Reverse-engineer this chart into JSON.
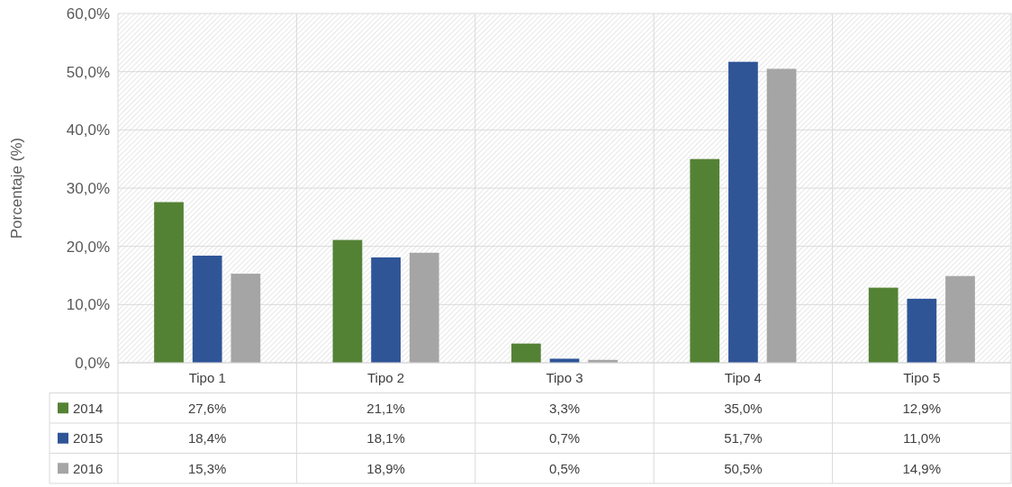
{
  "chart_data": {
    "type": "bar",
    "ylabel": "Porcentaje (%)",
    "categories": [
      "Tipo 1",
      "Tipo 2",
      "Tipo 3",
      "Tipo 4",
      "Tipo 5"
    ],
    "series": [
      {
        "name": "2014",
        "color": "#548235",
        "values": [
          27.6,
          21.1,
          3.3,
          35.0,
          12.9
        ],
        "value_labels": [
          "27,6%",
          "21,1%",
          "3,3%",
          "35,0%",
          "12,9%"
        ]
      },
      {
        "name": "2015",
        "color": "#2f5597",
        "values": [
          18.4,
          18.1,
          0.7,
          51.7,
          11.0
        ],
        "value_labels": [
          "18,4%",
          "18,1%",
          "0,7%",
          "51,7%",
          "11,0%"
        ]
      },
      {
        "name": "2016",
        "color": "#a5a5a5",
        "values": [
          15.3,
          18.9,
          0.5,
          50.5,
          14.9
        ],
        "value_labels": [
          "15,3%",
          "18,9%",
          "0,5%",
          "50,5%",
          "14,9%"
        ]
      }
    ],
    "ylim": [
      0,
      60
    ],
    "yticks": [
      {
        "value": 0,
        "label": "0,0%"
      },
      {
        "value": 10,
        "label": "10,0%"
      },
      {
        "value": 20,
        "label": "20,0%"
      },
      {
        "value": 30,
        "label": "30,0%"
      },
      {
        "value": 40,
        "label": "40,0%"
      },
      {
        "value": 50,
        "label": "50,0%"
      },
      {
        "value": 60,
        "label": "60,0%"
      }
    ],
    "grid": true,
    "legend": "bottom"
  }
}
